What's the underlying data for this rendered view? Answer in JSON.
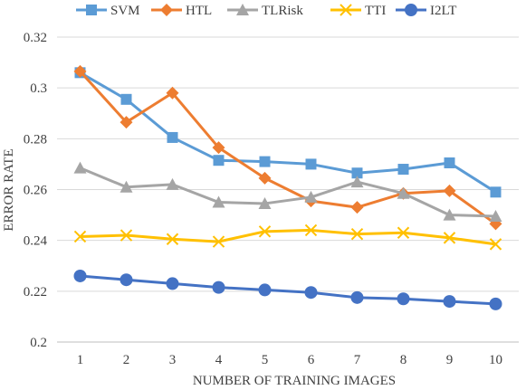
{
  "chart_data": {
    "type": "line",
    "title": "",
    "xlabel": "NUMBER OF TRAINING IMAGES",
    "ylabel": "ERROR RATE",
    "x": [
      1,
      2,
      3,
      4,
      5,
      6,
      7,
      8,
      9,
      10
    ],
    "x_ticks": [
      "1",
      "2",
      "3",
      "4",
      "5",
      "6",
      "7",
      "8",
      "9",
      "10"
    ],
    "ylim": [
      0.2,
      0.32
    ],
    "y_ticks": [
      "0.2",
      "0.22",
      "0.24",
      "0.26",
      "0.28",
      "0.3",
      "0.32"
    ],
    "grid": "horizontal",
    "legend_position": "top",
    "series": [
      {
        "name": "SVM",
        "color": "#5B9BD5",
        "marker": "square",
        "values": [
          0.306,
          0.2955,
          0.2805,
          0.2715,
          0.271,
          0.27,
          0.2665,
          0.268,
          0.2705,
          0.259
        ]
      },
      {
        "name": "HTL",
        "color": "#ED7D31",
        "marker": "diamond",
        "values": [
          0.3065,
          0.2865,
          0.298,
          0.2765,
          0.2645,
          0.2555,
          0.253,
          0.2585,
          0.2595,
          0.2465
        ]
      },
      {
        "name": "TLRisk",
        "color": "#A5A5A5",
        "marker": "triangle",
        "values": [
          0.2685,
          0.261,
          0.262,
          0.255,
          0.2545,
          0.257,
          0.263,
          0.2585,
          0.25,
          0.2495
        ]
      },
      {
        "name": "TTI",
        "color": "#FFC000",
        "marker": "x",
        "values": [
          0.2415,
          0.242,
          0.2405,
          0.2395,
          0.2435,
          0.244,
          0.2425,
          0.243,
          0.241,
          0.2385
        ]
      },
      {
        "name": "I2LT",
        "color": "#4472C4",
        "marker": "circle",
        "values": [
          0.226,
          0.2245,
          0.223,
          0.2215,
          0.2205,
          0.2195,
          0.2175,
          0.217,
          0.216,
          0.215
        ]
      }
    ]
  }
}
